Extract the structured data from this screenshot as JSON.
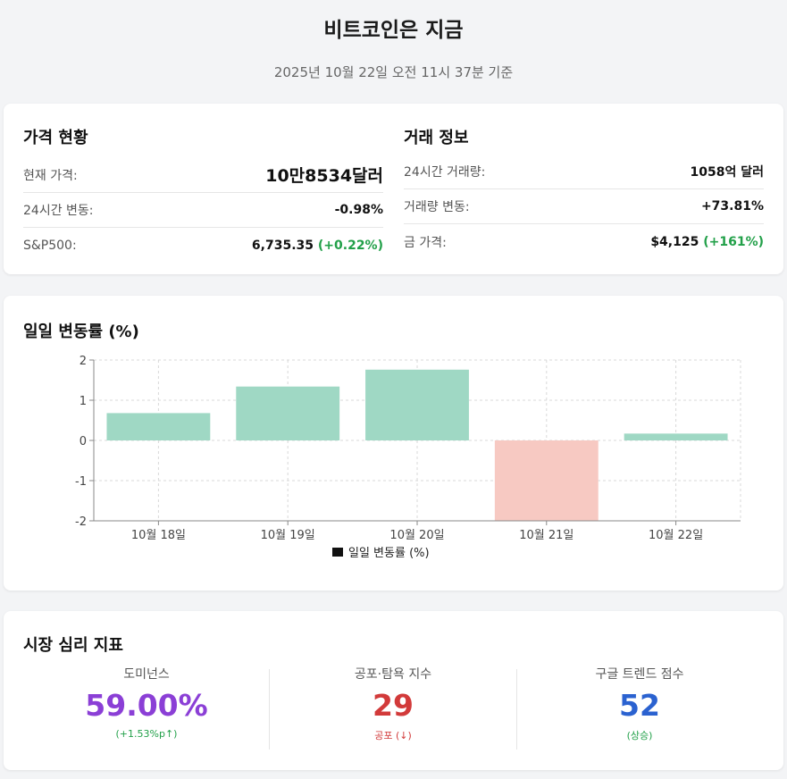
{
  "header": {
    "title": "비트코인은 지금",
    "subtitle": "2025년 10월 22일 오전 11시 37분 기준"
  },
  "price": {
    "title": "가격 현황",
    "rows": [
      {
        "label": "현재 가격:",
        "value": "10만8534달러"
      },
      {
        "label": "24시간 변동:",
        "value": "-0.98%"
      },
      {
        "label": "S&P500:",
        "value": "6,735.35",
        "change": "(+0.22%)"
      }
    ]
  },
  "trade": {
    "title": "거래 정보",
    "rows": [
      {
        "label": "24시간 거래량:",
        "value": "1058억 달러"
      },
      {
        "label": "거래량 변동:",
        "value": "+73.81%"
      },
      {
        "label": "금 가격:",
        "value": "$4,125",
        "change": "(+161%)"
      }
    ]
  },
  "chart_data": {
    "type": "bar",
    "title": "일일 변동률 (%)",
    "categories": [
      "10월 18일",
      "10월 19일",
      "10월 20일",
      "10월 21일",
      "10월 22일"
    ],
    "series": [
      {
        "name": "일일 변동률 (%)",
        "values": [
          0.68,
          1.34,
          1.76,
          -2.1,
          0.17
        ]
      }
    ],
    "ylim": [
      -2,
      2
    ],
    "yticks": [
      "2",
      "1",
      "0",
      "-1",
      "-2"
    ],
    "grid": true,
    "legend": "bottom",
    "colors": {
      "positive": "#9fd8c4",
      "negative": "#f7c9c2"
    }
  },
  "sentiment": {
    "title": "시장 심리 지표",
    "metrics": [
      {
        "label": "도미넌스",
        "value": "59.00%",
        "sub": "(+1.53%p↑)"
      },
      {
        "label": "공포·탐욕 지수",
        "value": "29",
        "sub": "공포 (↓)"
      },
      {
        "label": "구글 트렌드 점수",
        "value": "52",
        "sub": "(상승)"
      }
    ]
  }
}
